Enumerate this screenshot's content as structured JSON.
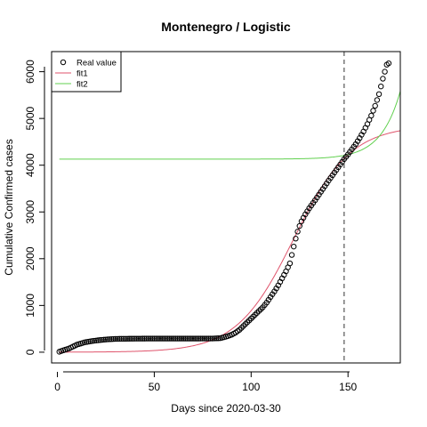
{
  "chart_data": {
    "type": "scatter",
    "title": "Montenegro / Logistic",
    "xlabel": "Days since 2020-03-30",
    "ylabel": "Cumulative Confirmed cases",
    "xlim": [
      -3,
      177
    ],
    "ylim": [
      -230,
      6430
    ],
    "xticks": [
      0,
      50,
      100,
      150
    ],
    "yticks": [
      0,
      1000,
      2000,
      3000,
      4000,
      5000,
      6000
    ],
    "vline": 148,
    "grid": false,
    "legend": {
      "placement": "top-left",
      "entries": [
        "Real value",
        "fit1",
        "fit2"
      ]
    },
    "colors": {
      "real": "#000000",
      "fit1": "#DF536B",
      "fit2": "#61D04F",
      "vline": "#555555"
    },
    "anchors": [
      [
        1,
        10
      ],
      [
        3,
        40
      ],
      [
        6,
        80
      ],
      [
        10,
        160
      ],
      [
        14,
        210
      ],
      [
        18,
        240
      ],
      [
        22,
        260
      ],
      [
        26,
        275
      ],
      [
        30,
        285
      ],
      [
        40,
        290
      ],
      [
        50,
        292
      ],
      [
        60,
        292
      ],
      [
        70,
        292
      ],
      [
        80,
        293
      ],
      [
        84,
        300
      ],
      [
        86,
        320
      ],
      [
        88,
        345
      ],
      [
        90,
        375
      ],
      [
        92,
        420
      ],
      [
        94,
        480
      ],
      [
        96,
        560
      ],
      [
        98,
        640
      ],
      [
        100,
        720
      ],
      [
        102,
        800
      ],
      [
        104,
        880
      ],
      [
        106,
        960
      ],
      [
        108,
        1060
      ],
      [
        110,
        1180
      ],
      [
        112,
        1300
      ],
      [
        114,
        1430
      ],
      [
        116,
        1580
      ],
      [
        118,
        1730
      ],
      [
        120,
        1900
      ],
      [
        121,
        2080
      ],
      [
        122,
        2260
      ],
      [
        123,
        2430
      ],
      [
        124,
        2580
      ],
      [
        125,
        2700
      ],
      [
        126,
        2800
      ],
      [
        128,
        2950
      ],
      [
        130,
        3080
      ],
      [
        133,
        3250
      ],
      [
        136,
        3430
      ],
      [
        140,
        3670
      ],
      [
        144,
        3900
      ],
      [
        148,
        4130
      ],
      [
        150,
        4230
      ],
      [
        152,
        4340
      ],
      [
        154,
        4450
      ],
      [
        156,
        4580
      ],
      [
        158,
        4720
      ],
      [
        160,
        4880
      ],
      [
        162,
        5060
      ],
      [
        164,
        5270
      ],
      [
        166,
        5520
      ],
      [
        168,
        5850
      ],
      [
        170,
        6150
      ],
      [
        171,
        6180
      ]
    ],
    "series": [
      {
        "name": "Real value",
        "style": "points",
        "x_range": [
          1,
          171
        ]
      },
      {
        "name": "fit1",
        "style": "line",
        "model": "logistic",
        "K": 4850,
        "r": 0.068,
        "x0": 122,
        "x_range": [
          1,
          177
        ]
      },
      {
        "name": "fit2",
        "style": "line",
        "model": "exponential",
        "base": 4130,
        "a": 80,
        "b": 0.1,
        "xs": 148,
        "x_range": [
          1,
          177
        ]
      }
    ]
  }
}
